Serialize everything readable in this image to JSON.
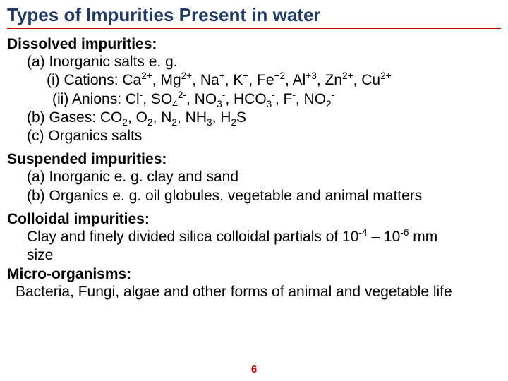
{
  "colors": {
    "title_color": "#1f3864",
    "title_underline": "#c00000",
    "body_text": "#000000",
    "pagenum_color": "#c00000"
  },
  "title": "Types of Impurities Present in water",
  "dissolved": {
    "head": "Dissolved impurities:",
    "a_intro": "(a) Inorganic salts e. g.",
    "i_label": "(i) Cations: ",
    "cations": "Ca<sup>2+</sup>, Mg<sup>2+</sup>, Na<sup>+</sup>, K<sup>+</sup>, Fe<sup>+2</sup>, Al<sup>+3</sup>, Zn<sup>2+</sup>, Cu<sup>2+</sup>",
    "ii_label": "(ii) Anions: ",
    "anions": "Cl<sup>-</sup>, SO<sub>4</sub><sup>2-</sup>, NO<sub>3</sub><sup>-</sup>, HCO<sub>3</sub><sup>-</sup>, F<sup>-</sup>, NO<sub>2</sub><sup>-</sup>",
    "b": "(b) Gases: CO<sub>2</sub>, O<sub>2</sub>, N<sub>2</sub>, NH<sub>3</sub>, H<sub>2</sub>S",
    "c": "(c) Organics salts"
  },
  "suspended": {
    "head": "Suspended impurities:",
    "a": "(a) Inorganic e. g. clay and sand",
    "b": "(b) Organics e. g. oil globules, vegetable and animal matters"
  },
  "colloidal": {
    "head": "Colloidal impurities:",
    "line1": "Clay and finely divided silica colloidal partials of 10<sup>-4</sup> – 10<sup>-6</sup> mm",
    "line2": "size"
  },
  "micro": {
    "head": "Micro-organisms:",
    "line": "Bacteria, Fungi, algae and other forms of animal and vegetable life"
  },
  "pagenum": "6"
}
